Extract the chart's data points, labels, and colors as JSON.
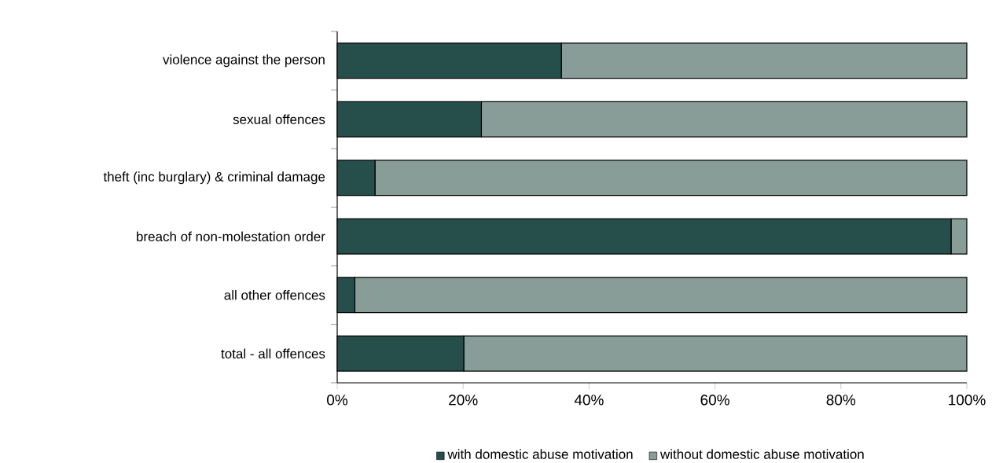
{
  "chart_data": {
    "type": "bar",
    "orientation": "horizontal",
    "stacked": true,
    "categories": [
      "violence against the person",
      "sexual offences",
      "theft (inc burglary) & criminal damage",
      "breach of non-molestation order",
      "all other offences",
      "total - all offences"
    ],
    "series": [
      {
        "name": "with domestic abuse motivation",
        "color": "#264f4b",
        "values": [
          35.6,
          22.9,
          6.0,
          97.5,
          2.8,
          20.1
        ]
      },
      {
        "name": "without domestic abuse motivation",
        "color": "#889d98",
        "values": [
          64.4,
          77.1,
          94.0,
          2.5,
          97.2,
          79.9
        ]
      }
    ],
    "xlim": [
      0,
      100
    ],
    "xticks": [
      {
        "value": 0,
        "label": "0%"
      },
      {
        "value": 20,
        "label": "20%"
      },
      {
        "value": 40,
        "label": "40%"
      },
      {
        "value": 60,
        "label": "60%"
      },
      {
        "value": 80,
        "label": "80%"
      },
      {
        "value": 100,
        "label": "100%"
      }
    ],
    "legend": "bottom",
    "grid": false
  }
}
